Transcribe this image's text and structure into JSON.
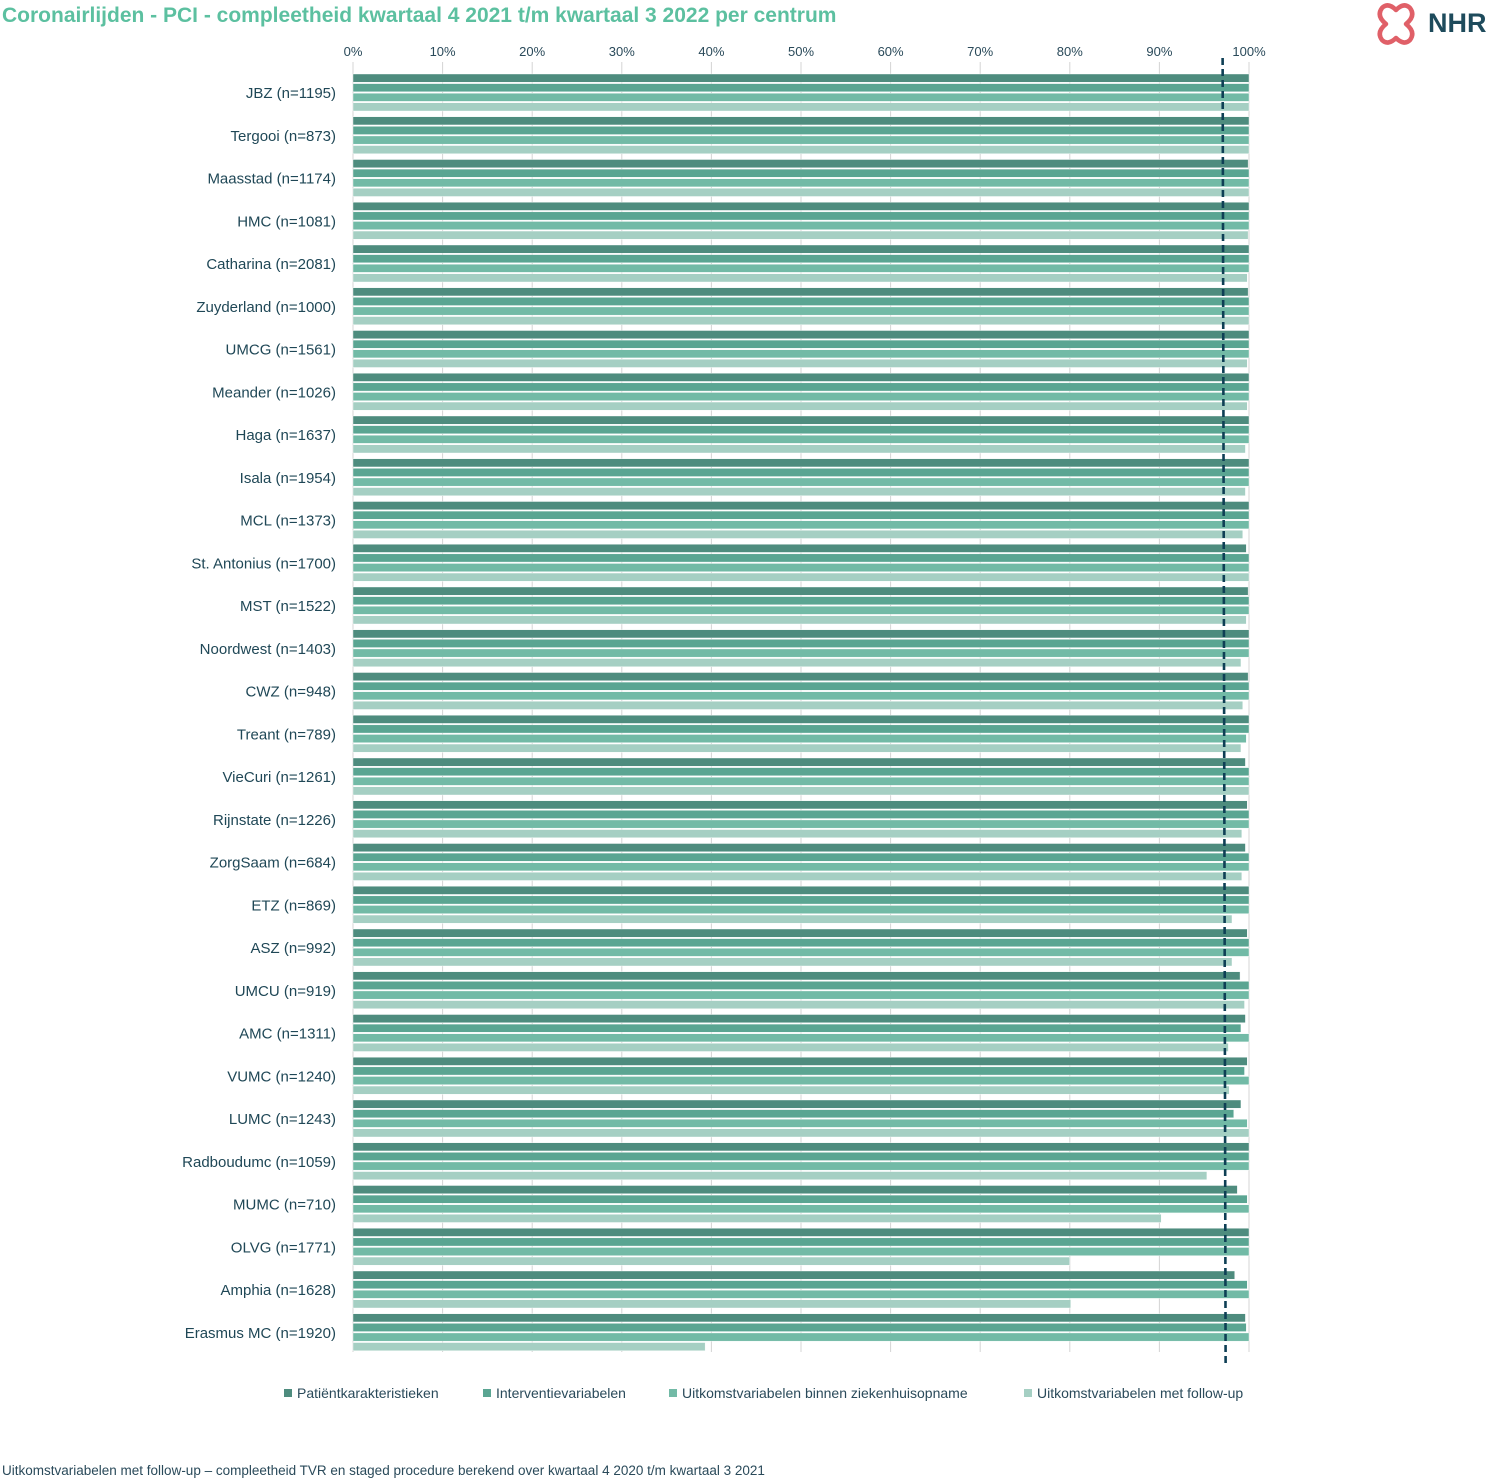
{
  "title": "Coronairlijden - PCI - compleetheid kwartaal 4 2021 t/m kwartaal 3 2022 per centrum",
  "footnote": "Uitkomstvariabelen met follow-up – compleetheid TVR en staged procedure berekend over kwartaal 4 2020 t/m kwartaal 3 2021",
  "logo": {
    "text": "NHR",
    "mark": "heart-cross-logo-icon",
    "text_color": "#1e4b5c",
    "mark_color": "#e06068"
  },
  "chart_data": {
    "type": "bar",
    "orientation": "horizontal",
    "xlim": [
      0,
      100
    ],
    "xticks": [
      "0%",
      "10%",
      "20%",
      "30%",
      "40%",
      "50%",
      "60%",
      "70%",
      "80%",
      "90%",
      "100%"
    ],
    "reference_line": {
      "value": 97,
      "style": "dashed",
      "color": "#0e3f55"
    },
    "legend_position": "bottom",
    "grid": "vertical",
    "categories": [
      "JBZ (n=1195)",
      "Tergooi (n=873)",
      "Maasstad (n=1174)",
      "HMC (n=1081)",
      "Catharina (n=2081)",
      "Zuyderland (n=1000)",
      "UMCG (n=1561)",
      "Meander (n=1026)",
      "Haga (n=1637)",
      "Isala (n=1954)",
      "MCL (n=1373)",
      "St. Antonius (n=1700)",
      "MST (n=1522)",
      "Noordwest (n=1403)",
      "CWZ (n=948)",
      "Treant (n=789)",
      "VieCuri (n=1261)",
      "Rijnstate (n=1226)",
      "ZorgSaam (n=684)",
      "ETZ (n=869)",
      "ASZ (n=992)",
      "UMCU (n=919)",
      "AMC (n=1311)",
      "VUMC (n=1240)",
      "LUMC (n=1243)",
      "Radboudumc (n=1059)",
      "MUMC (n=710)",
      "OLVG (n=1771)",
      "Amphia (n=1628)",
      "Erasmus MC (n=1920)"
    ],
    "series": [
      {
        "name": "Patiëntkarakteristieken",
        "color": "#4e8c7e",
        "values": [
          100,
          100,
          99.9,
          100,
          100,
          99.9,
          100,
          100,
          100,
          100,
          100,
          99.7,
          99.9,
          100,
          99.9,
          100,
          99.6,
          99.8,
          99.6,
          100,
          99.8,
          99,
          99.6,
          99.8,
          99.1,
          100,
          98.7,
          100,
          98.4,
          99.6
        ]
      },
      {
        "name": "Interventievariabelen",
        "color": "#5aa592",
        "values": [
          100,
          100,
          100,
          100,
          100,
          100,
          100,
          100,
          100,
          100,
          100,
          100,
          100,
          100,
          100,
          100,
          100,
          100,
          100,
          100,
          100,
          100,
          99.1,
          99.5,
          98.3,
          100,
          99.8,
          100,
          99.8,
          99.7
        ]
      },
      {
        "name": "Uitkomstvariabelen binnen ziekenhuisopname",
        "color": "#72baa6",
        "values": [
          100,
          100,
          100,
          100,
          100,
          100,
          100,
          100,
          100,
          100,
          100,
          100,
          100,
          100,
          100,
          99.7,
          100,
          100,
          100,
          100,
          100,
          100,
          100,
          100,
          99.8,
          100,
          100,
          100,
          100,
          100
        ]
      },
      {
        "name": "Uitkomstvariabelen met follow-up",
        "color": "#a5cfc3",
        "values": [
          100,
          100,
          100,
          99.9,
          99.8,
          100,
          99.8,
          99.8,
          99.6,
          99.6,
          99.3,
          100,
          99.7,
          99.1,
          99.3,
          99.1,
          100,
          99.2,
          99.2,
          98.1,
          98.1,
          99.5,
          97.7,
          97.8,
          100,
          95.3,
          90.2,
          80,
          80.1,
          39.3
        ]
      }
    ]
  }
}
